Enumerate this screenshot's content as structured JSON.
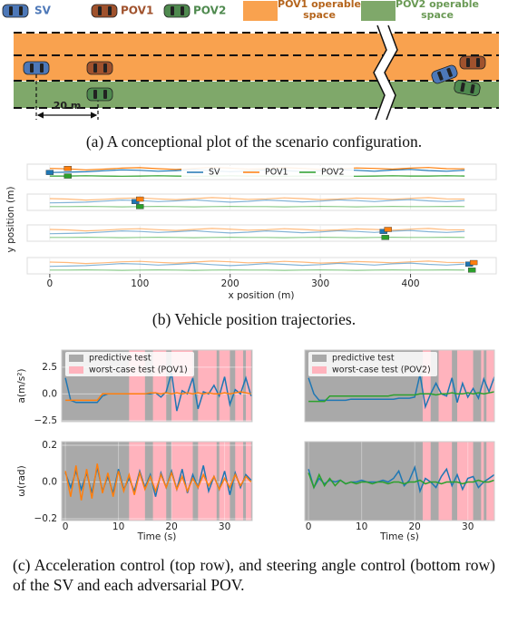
{
  "scenario": {
    "legend": {
      "sv": "SV",
      "pov1": "POV1",
      "pov2": "POV2",
      "pov1_space": "POV1 operable space",
      "pov2_space": "POV2 operable space"
    },
    "distance_label": "20 m"
  },
  "captions": {
    "a": "(a) A conceptional plot of the scenario configuration.",
    "b": "(b) Vehicle position trajectories.",
    "c": "(c) Acceleration control (top row), and steering angle control (bottom row) of the SV and each adversarial POV."
  },
  "chart_data": [
    {
      "type": "line",
      "x_label": "x position (m)",
      "y_label": "y position (m)",
      "xlim": [
        -25,
        495
      ],
      "xticks": [
        0,
        100,
        200,
        300,
        400
      ],
      "ylim": [
        -1.5,
        5
      ],
      "x": [
        0,
        20,
        40,
        60,
        80,
        100,
        120,
        140,
        160,
        180,
        200,
        220,
        240,
        260,
        280,
        300,
        320,
        340,
        360,
        380,
        400,
        420,
        440,
        460
      ],
      "series": [
        {
          "name": "SV",
          "color": "#1f77b4",
          "values": [
            1.5,
            1.6,
            1.8,
            2.2,
            2.6,
            2.4,
            2.0,
            2.3,
            2.7,
            2.2,
            1.8,
            2.1,
            2.6,
            2.3,
            1.9,
            2.2,
            2.7,
            2.4,
            2.0,
            2.5,
            2.8,
            2.3,
            2.0,
            2.4
          ]
        },
        {
          "name": "POV1",
          "color": "#ff7f0e",
          "values": [
            3.2,
            3.0,
            2.6,
            2.9,
            3.3,
            3.5,
            3.1,
            2.8,
            3.2,
            3.6,
            3.3,
            2.9,
            3.1,
            3.5,
            3.2,
            2.8,
            3.0,
            3.4,
            3.2,
            2.9,
            3.3,
            3.6,
            3.1,
            3.0
          ]
        },
        {
          "name": "POV2",
          "color": "#2ca02c",
          "values": [
            0,
            0,
            0.1,
            0,
            -0.1,
            0,
            0.1,
            0,
            -0.1,
            0,
            0.1,
            0,
            0,
            -0.1,
            0,
            0.1,
            0,
            -0.1,
            0,
            0.1,
            0,
            0,
            0.1,
            0
          ]
        }
      ],
      "snapshots": [
        [
          [
            0,
            1.5
          ],
          [
            20,
            3.2
          ],
          [
            20,
            0
          ]
        ],
        [
          [
            95,
            2.0
          ],
          [
            100,
            3.0
          ],
          [
            100,
            0
          ]
        ],
        [
          [
            370,
            2.4
          ],
          [
            375,
            3.2
          ],
          [
            372,
            0
          ]
        ],
        [
          [
            465,
            2.4
          ],
          [
            470,
            3.0
          ],
          [
            468,
            0
          ]
        ]
      ]
    },
    {
      "type": "line",
      "y_label": "a(m/s²)",
      "xlim": [
        -0.7,
        35.2
      ],
      "ylim": [
        -2.6,
        4.1
      ],
      "yticks": [
        2.5,
        {
          "value": 0,
          "label": "0.0"
        },
        {
          "value": -2.5,
          "label": "−2.5"
        }
      ],
      "shading": {
        "predictive": {
          "name": "predictive test",
          "color": "#a9a9a9"
        },
        "worst_case": {
          "name": "worst-case test (POV1)",
          "color": "#ffb3bd",
          "intervals": [
            [
              12,
              15
            ],
            [
              16.5,
              19
            ],
            [
              20,
              24
            ],
            [
              25,
              28.5
            ],
            [
              29,
              31
            ],
            [
              32,
              33.5
            ],
            [
              34,
              35
            ]
          ]
        }
      },
      "x": [
        0,
        1,
        2,
        3,
        4,
        5,
        6,
        7,
        8,
        9,
        10,
        11,
        12,
        13,
        14,
        15,
        16,
        17,
        18,
        19,
        20,
        21,
        22,
        23,
        24,
        25,
        26,
        27,
        28,
        29,
        30,
        31,
        32,
        33,
        34,
        35
      ],
      "series": [
        {
          "color": "#1f77b4",
          "values": [
            1.5,
            -0.6,
            -0.8,
            -0.8,
            -0.8,
            -0.8,
            -0.8,
            -0.2,
            0,
            0,
            0,
            0,
            0,
            0,
            0,
            0,
            0,
            0.1,
            -0.3,
            0.2,
            2.0,
            -1.6,
            0.3,
            0,
            1.5,
            -1.4,
            0.2,
            0,
            0.8,
            -0.2,
            1.6,
            -1.0,
            0.4,
            0,
            1.5,
            -0.2
          ]
        },
        {
          "color": "#ff7f0e",
          "values": [
            -0.6,
            -0.6,
            -0.6,
            -0.6,
            -0.6,
            -0.6,
            -0.6,
            0,
            0,
            0,
            0,
            0,
            0,
            0,
            0,
            0,
            0.1,
            0.1,
            0,
            0.1,
            0,
            0.1,
            0,
            0.1,
            0,
            0.1,
            0,
            0.1,
            0,
            0,
            0.1,
            0,
            0.1,
            0.2,
            0.1,
            0
          ]
        }
      ]
    },
    {
      "type": "line",
      "y_label": "ω(rad)",
      "x_label": "Time (s)",
      "xlim": [
        -0.7,
        35.2
      ],
      "ylim": [
        -0.21,
        0.22
      ],
      "xticks": [
        0,
        10,
        20,
        30
      ],
      "yticks": [
        0.2,
        {
          "value": 0,
          "label": "0.0"
        },
        {
          "value": -0.2,
          "label": "−0.2"
        }
      ],
      "shading": {
        "predictive": {
          "color": "#a9a9a9"
        },
        "worst_case": {
          "color": "#ffb3bd",
          "intervals": [
            [
              12,
              15
            ],
            [
              16.5,
              19
            ],
            [
              20,
              24
            ],
            [
              25,
              28.5
            ],
            [
              29,
              31
            ],
            [
              32,
              33.5
            ],
            [
              34,
              35
            ]
          ]
        }
      },
      "x": [
        0,
        1,
        2,
        3,
        4,
        5,
        6,
        7,
        8,
        9,
        10,
        11,
        12,
        13,
        14,
        15,
        16,
        17,
        18,
        19,
        20,
        21,
        22,
        23,
        24,
        25,
        26,
        27,
        28,
        29,
        30,
        31,
        32,
        33,
        34,
        35
      ],
      "series": [
        {
          "color": "#1f77b4",
          "values": [
            0.05,
            -0.03,
            0.06,
            -0.04,
            0.05,
            -0.06,
            0.08,
            -0.05,
            0.03,
            -0.06,
            0.07,
            -0.04,
            0.02,
            -0.05,
            0.06,
            -0.03,
            0.04,
            -0.08,
            0.05,
            -0.03,
            0.06,
            -0.04,
            0.07,
            -0.06,
            0.04,
            -0.03,
            0.09,
            -0.05,
            0.03,
            -0.04,
            0.06,
            -0.07,
            0.05,
            -0.03,
            0.04,
            0.01
          ]
        },
        {
          "color": "#ff7f0e",
          "values": [
            0.06,
            -0.08,
            0.09,
            -0.1,
            0.07,
            -0.09,
            0.1,
            -0.06,
            0.05,
            -0.08,
            0.06,
            -0.05,
            0.04,
            -0.07,
            0.05,
            -0.04,
            0.03,
            -0.05,
            0.04,
            -0.03,
            0.05,
            -0.04,
            0.03,
            -0.05,
            0.02,
            -0.03,
            0.04,
            -0.02,
            0.03,
            -0.04,
            0.02,
            -0.03,
            0.04,
            -0.02,
            0.03,
            0
          ]
        }
      ]
    },
    {
      "type": "line",
      "xlim": [
        -0.7,
        35.0
      ],
      "ylim": [
        -2.6,
        4.1
      ],
      "shading": {
        "predictive": {
          "name": "predictive test",
          "color": "#a9a9a9"
        },
        "worst_case": {
          "name": "worst-case test (POV2)",
          "color": "#ffb3bd",
          "intervals": [
            [
              21.5,
              23
            ],
            [
              24.5,
              27
            ],
            [
              28,
              31
            ],
            [
              32.5,
              33
            ],
            [
              33.5,
              35
            ]
          ]
        }
      },
      "x": [
        0,
        1,
        2,
        3,
        4,
        5,
        6,
        7,
        8,
        9,
        10,
        11,
        12,
        13,
        14,
        15,
        16,
        17,
        18,
        19,
        20,
        21,
        22,
        23,
        24,
        25,
        26,
        27,
        28,
        29,
        30,
        31,
        32,
        33,
        34,
        35
      ],
      "series": [
        {
          "color": "#1f77b4",
          "values": [
            1.5,
            0,
            -0.6,
            -0.6,
            -0.6,
            -0.6,
            -0.6,
            -0.6,
            -0.5,
            -0.5,
            -0.5,
            -0.5,
            -0.5,
            -0.5,
            -0.5,
            -0.5,
            -0.5,
            -0.4,
            -0.4,
            -0.4,
            -0.3,
            1.8,
            -1.2,
            0,
            1.0,
            0,
            -0.2,
            1.5,
            -0.8,
            1.0,
            -0.3,
            0.5,
            -0.4,
            1.4,
            0.2,
            1.6
          ]
        },
        {
          "color": "#2ca02c",
          "values": [
            -0.7,
            -0.7,
            -0.7,
            -0.7,
            -0.2,
            -0.2,
            -0.2,
            -0.2,
            -0.2,
            -0.2,
            -0.2,
            -0.2,
            -0.2,
            -0.2,
            -0.2,
            -0.2,
            -0.1,
            -0.1,
            -0.1,
            -0.1,
            -0.1,
            0,
            0,
            0,
            -0.1,
            0,
            0,
            0.1,
            0,
            0,
            0.1,
            0,
            0.1,
            0,
            0.1,
            0.2
          ]
        }
      ]
    },
    {
      "type": "line",
      "x_label": "Time (s)",
      "xlim": [
        -0.7,
        35.0
      ],
      "ylim": [
        -0.21,
        0.22
      ],
      "xticks": [
        0,
        10,
        20,
        30
      ],
      "shading": {
        "predictive": {
          "color": "#a9a9a9"
        },
        "worst_case": {
          "color": "#ffb3bd",
          "intervals": [
            [
              21.5,
              23
            ],
            [
              24.5,
              27
            ],
            [
              28,
              31
            ],
            [
              32.5,
              33
            ],
            [
              33.5,
              35
            ]
          ]
        }
      },
      "x": [
        0,
        1,
        2,
        3,
        4,
        5,
        6,
        7,
        8,
        9,
        10,
        11,
        12,
        13,
        14,
        15,
        16,
        17,
        18,
        19,
        20,
        21,
        22,
        23,
        24,
        25,
        26,
        27,
        28,
        29,
        30,
        31,
        32,
        33,
        34,
        35
      ],
      "series": [
        {
          "color": "#1f77b4",
          "values": [
            0.07,
            -0.03,
            0.02,
            -0.01,
            0.01,
            0,
            0.01,
            -0.01,
            0,
            0,
            0.01,
            0,
            0,
            0,
            0.01,
            0,
            0.02,
            0.06,
            -0.02,
            0.01,
            0.08,
            -0.05,
            0.02,
            0,
            -0.03,
            0.03,
            0.07,
            -0.02,
            0.04,
            -0.04,
            0.02,
            0.03,
            -0.03,
            0,
            0.02,
            0.04
          ]
        },
        {
          "color": "#2ca02c",
          "values": [
            0.05,
            -0.03,
            0.04,
            -0.02,
            0.02,
            -0.02,
            0.01,
            -0.01,
            0,
            -0.01,
            0,
            0,
            -0.01,
            0,
            0,
            -0.01,
            0,
            0,
            -0.01,
            0,
            0,
            0.01,
            -0.01,
            0,
            0,
            -0.01,
            0,
            0,
            0,
            -0.01,
            0,
            0,
            0.01,
            0,
            0,
            0.01
          ]
        }
      ]
    }
  ]
}
